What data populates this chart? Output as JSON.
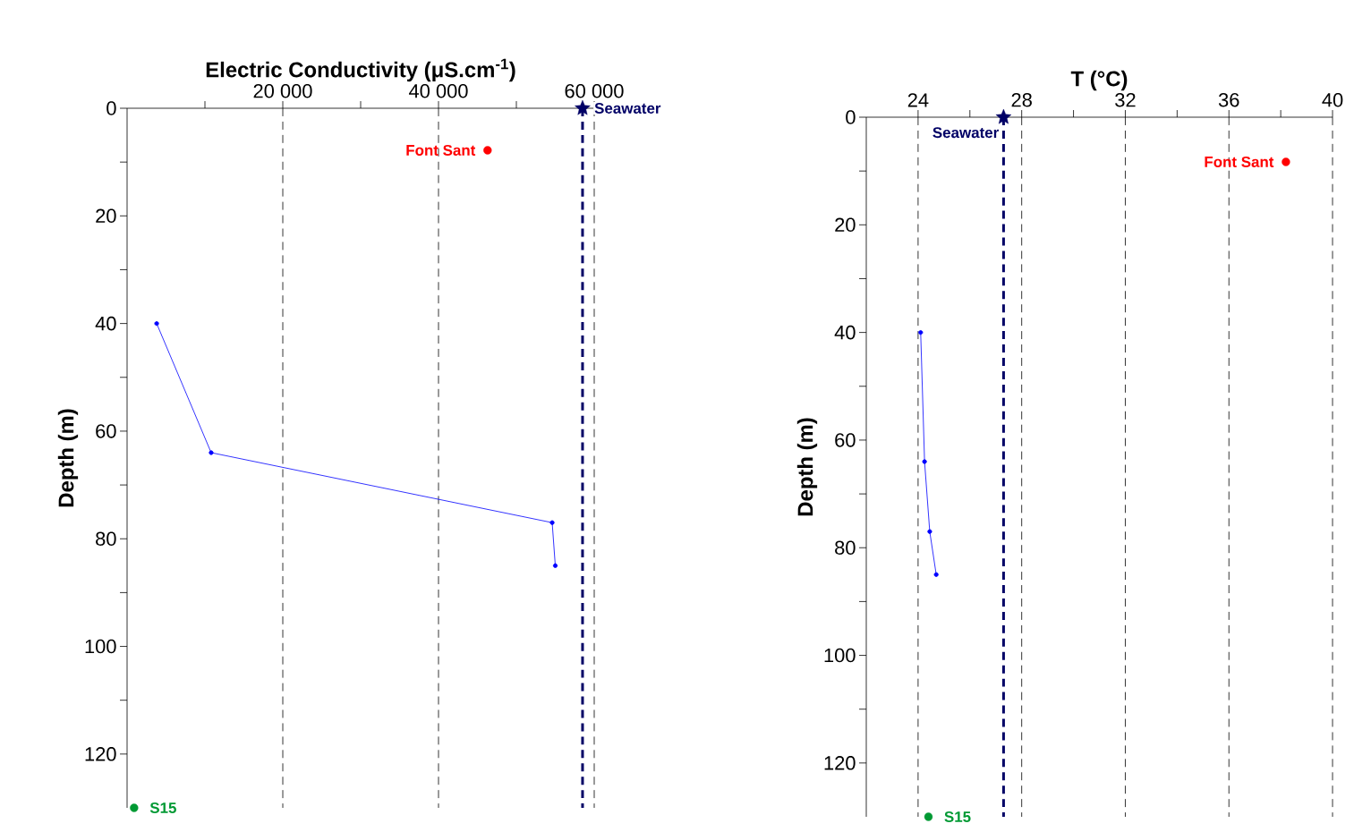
{
  "chart_data": [
    {
      "type": "line",
      "xlabel": "Electric Conductivity (μS.cm$^{-1}$)",
      "ylabel": "Depth (m)",
      "xlim": [
        0,
        60000
      ],
      "ylim": [
        130,
        0
      ],
      "grid": "x",
      "xticks": [
        {
          "value": 10000,
          "label": null
        },
        {
          "value": 20000,
          "label": "20 000"
        },
        {
          "value": 30000,
          "label": null
        },
        {
          "value": 40000,
          "label": "40 000"
        },
        {
          "value": 50000,
          "label": null
        },
        {
          "value": 60000,
          "label": "60 000"
        }
      ],
      "yticks": [
        0,
        {
          "value": 10,
          "label": null
        },
        20,
        {
          "value": 30,
          "label": null
        },
        40,
        {
          "value": 50,
          "label": null
        },
        60,
        {
          "value": 70,
          "label": null
        },
        80,
        {
          "value": 90,
          "label": null
        },
        100,
        {
          "value": 110,
          "label": null
        },
        120
      ],
      "series": [
        {
          "color": "#0000ff",
          "marker": "circle",
          "x": [
            3800,
            10800,
            54600,
            55000
          ],
          "values": [
            40,
            64,
            77,
            85
          ]
        },
        {
          "type": "scatter",
          "name": "Font Sant",
          "color": "#ff0000",
          "marker": "circle",
          "x": [
            46300
          ],
          "values": [
            7.8
          ]
        },
        {
          "type": "scatter",
          "name": "S15",
          "color": "#009933",
          "marker": "circle",
          "x": [
            900
          ],
          "values": [
            130
          ]
        },
        {
          "type": "scatter",
          "color": "#000066",
          "marker": "star",
          "x": [
            58500
          ],
          "values": [
            0
          ]
        }
      ],
      "ref_lines": [
        {
          "axis": "x",
          "value": 58500,
          "label": "Seawater",
          "color": "#000066",
          "line_style": "dashed"
        }
      ]
    },
    {
      "type": "line",
      "xlabel": "T (°C)",
      "ylabel": "Depth (m)",
      "xlim": [
        22,
        40
      ],
      "ylim": [
        130,
        0
      ],
      "grid": "x",
      "xticks": [
        24,
        {
          "value": 26,
          "label": null
        },
        28,
        {
          "value": 30,
          "label": null
        },
        32,
        {
          "value": 34,
          "label": null
        },
        36,
        {
          "value": 38,
          "label": null
        },
        40
      ],
      "yticks": [
        0,
        {
          "value": 10,
          "label": null
        },
        20,
        {
          "value": 30,
          "label": null
        },
        40,
        {
          "value": 50,
          "label": null
        },
        60,
        {
          "value": 70,
          "label": null
        },
        80,
        {
          "value": 90,
          "label": null
        },
        100,
        {
          "value": 110,
          "label": null
        },
        120
      ],
      "series": [
        {
          "color": "#0000ff",
          "marker": "circle",
          "x": [
            24.1,
            24.25,
            24.45,
            24.7
          ],
          "values": [
            40,
            64,
            77,
            85
          ]
        },
        {
          "type": "scatter",
          "name": "Font Sant",
          "color": "#ff0000",
          "marker": "circle",
          "x": [
            38.2
          ],
          "values": [
            8.3
          ]
        },
        {
          "type": "scatter",
          "name": "S15",
          "color": "#009933",
          "marker": "circle",
          "x": [
            24.4
          ],
          "values": [
            130
          ]
        },
        {
          "type": "scatter",
          "color": "#000066",
          "marker": "star",
          "x": [
            27.3
          ],
          "values": [
            0
          ]
        }
      ],
      "ref_lines": [
        {
          "axis": "x",
          "value": 27.3,
          "label": "Seawater",
          "color": "#000066",
          "line_style": "dashed"
        }
      ]
    }
  ]
}
